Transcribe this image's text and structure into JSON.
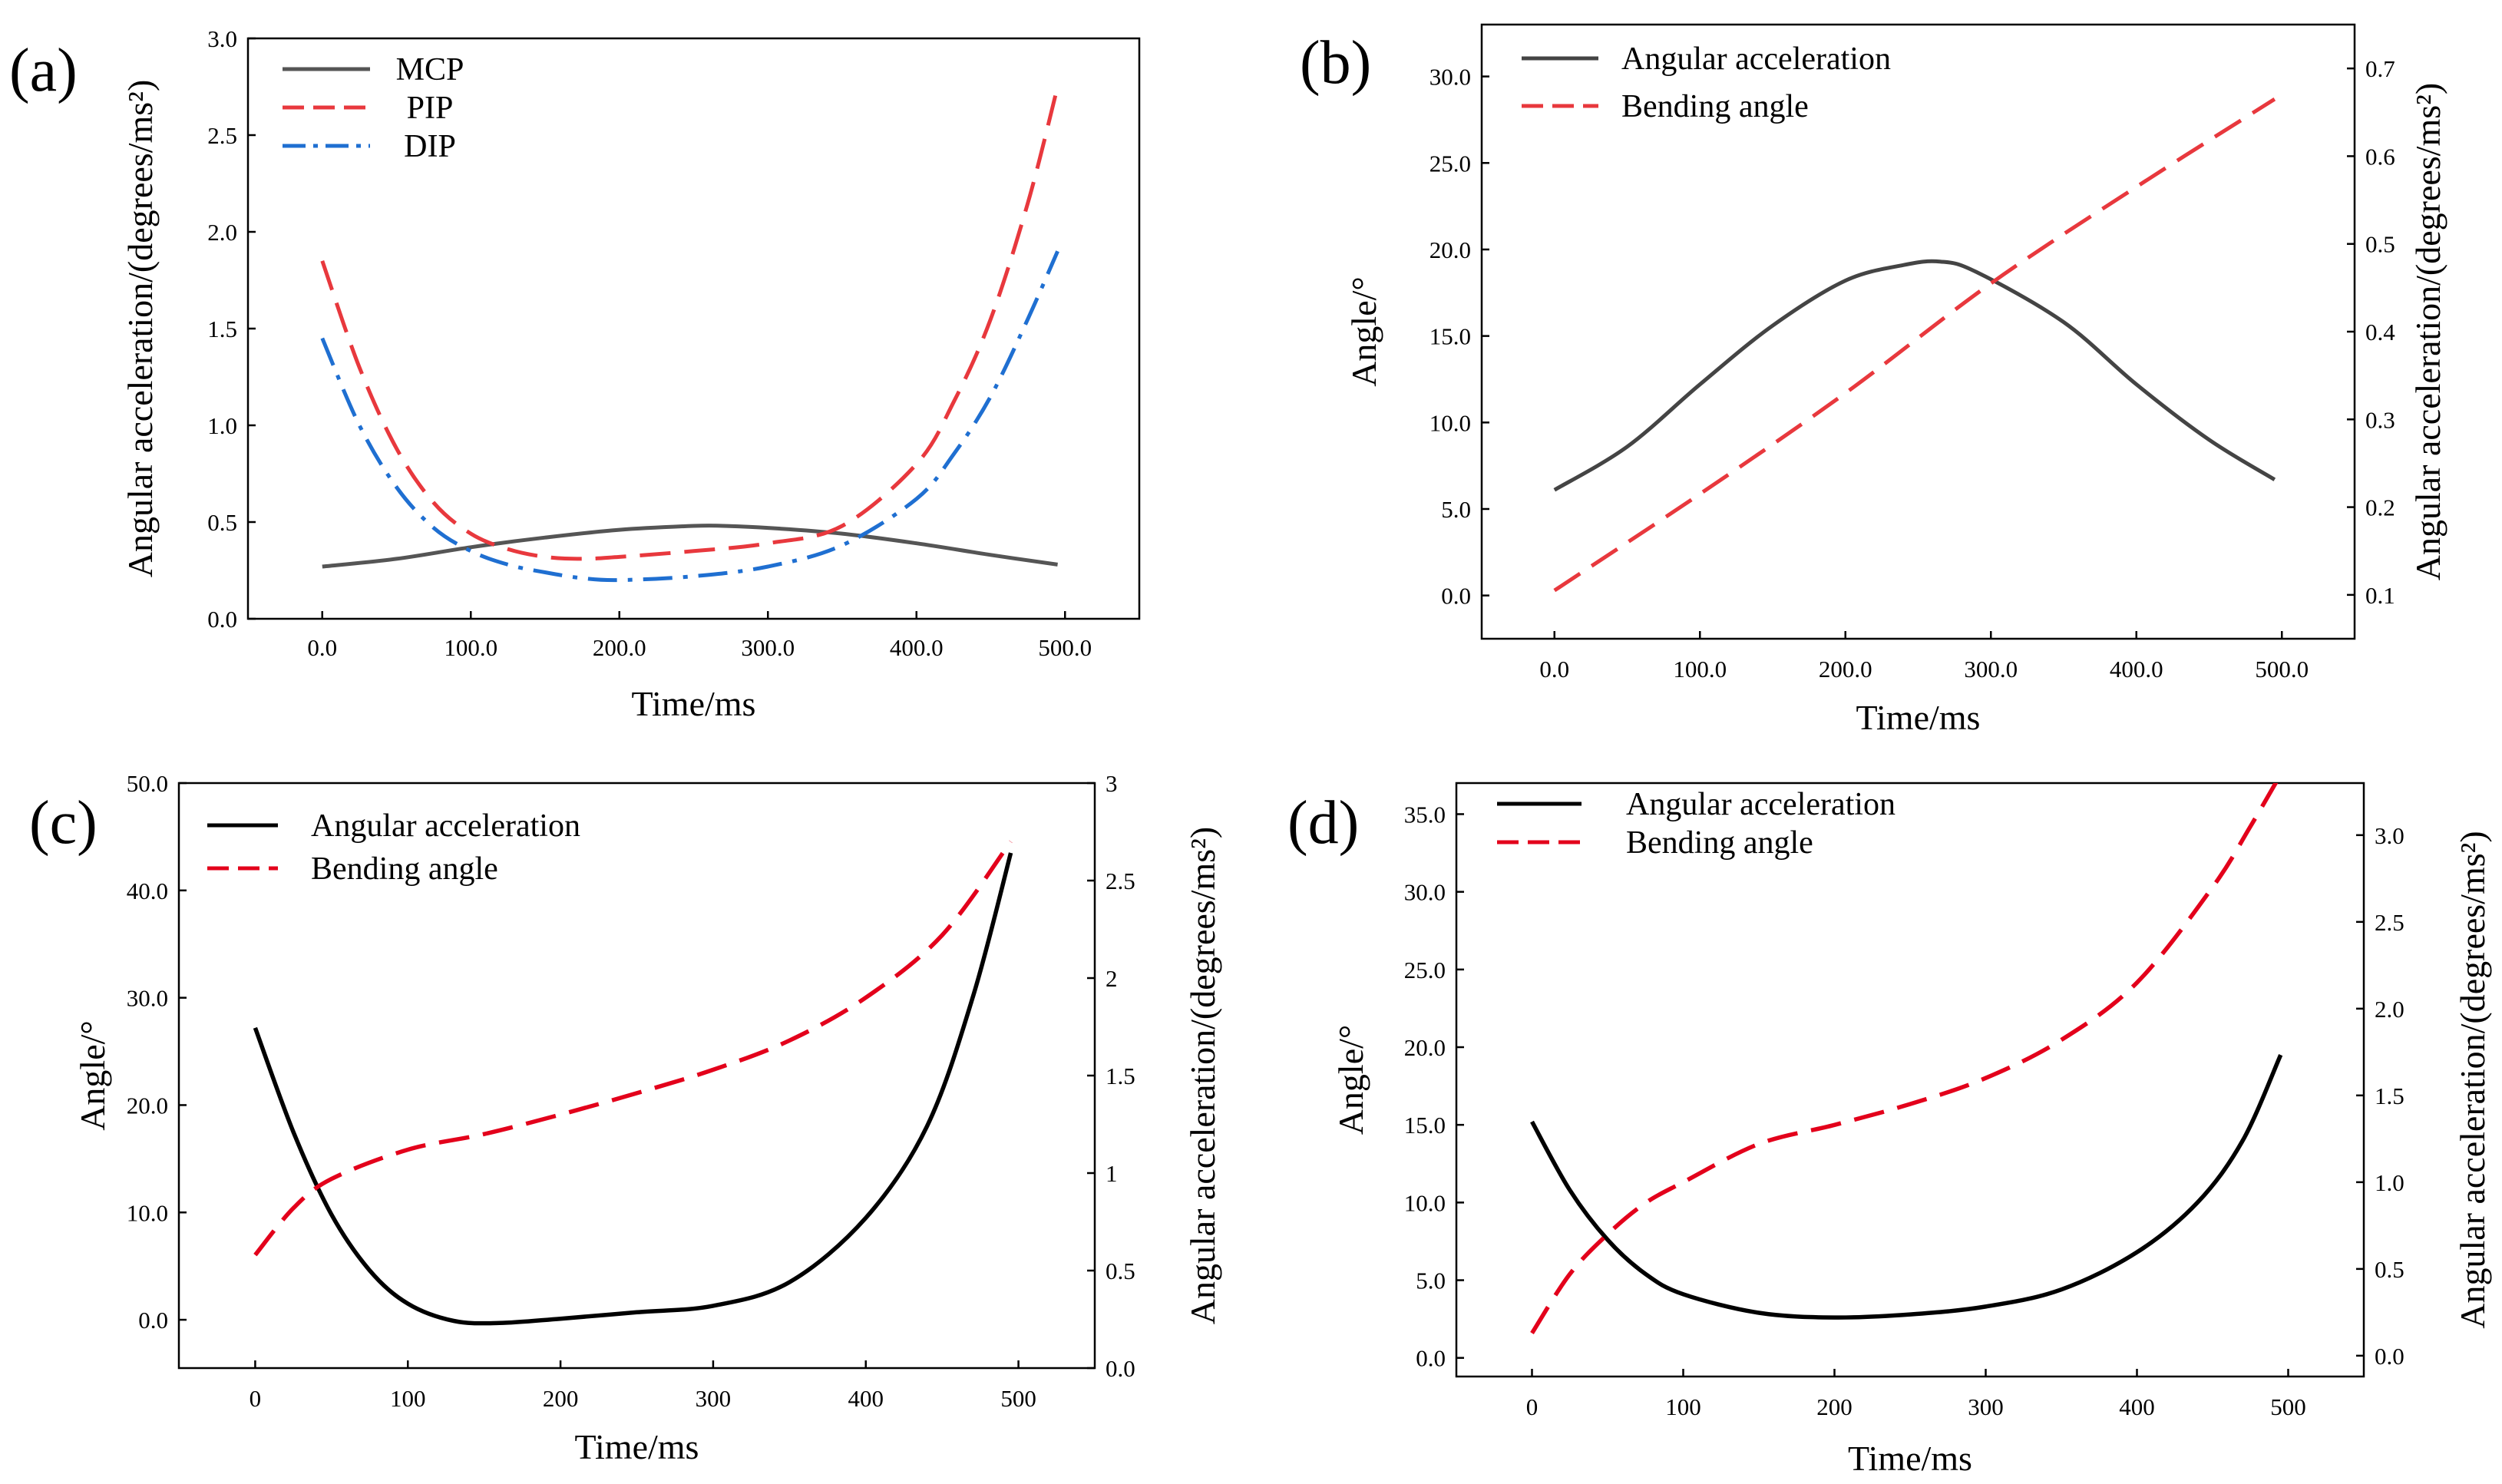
{
  "chart_data": [
    {
      "panel": "(a)",
      "type": "line",
      "xlabel": "Time/ms",
      "ylabel": "Angular acceleration/(degrees/ms²)",
      "xlim": [
        -50,
        550
      ],
      "ylim": [
        0,
        3.0
      ],
      "xticks": [
        0,
        100,
        200,
        300,
        400,
        500
      ],
      "xtick_labels": [
        "0.0",
        "100.0",
        "200.0",
        "300.0",
        "400.0",
        "500.0"
      ],
      "yticks": [
        0,
        0.5,
        1.0,
        1.5,
        2.0,
        2.5,
        3.0
      ],
      "ytick_labels": [
        "0.0",
        "0.5",
        "1.0",
        "1.5",
        "2.0",
        "2.5",
        "3.0"
      ],
      "legend": "top-left",
      "series": [
        {
          "name": "MCP",
          "axis": "left",
          "color": "#555555",
          "style": "solid",
          "x": [
            0,
            50,
            100,
            150,
            200,
            250,
            270,
            300,
            350,
            400,
            450,
            495
          ],
          "y": [
            0.27,
            0.31,
            0.37,
            0.42,
            0.46,
            0.48,
            0.48,
            0.47,
            0.44,
            0.39,
            0.33,
            0.28
          ]
        },
        {
          "name": "PIP",
          "axis": "left",
          "color": "#e8383d",
          "style": "dash",
          "x": [
            0,
            25,
            50,
            75,
            100,
            125,
            150,
            175,
            200,
            250,
            300,
            350,
            400,
            425,
            450,
            475,
            495
          ],
          "y": [
            1.85,
            1.3,
            0.88,
            0.6,
            0.44,
            0.36,
            0.32,
            0.31,
            0.32,
            0.35,
            0.39,
            0.48,
            0.8,
            1.12,
            1.55,
            2.15,
            2.75
          ]
        },
        {
          "name": "DIP",
          "axis": "left",
          "color": "#1f6fd1",
          "style": "dashdot",
          "x": [
            0,
            25,
            50,
            75,
            100,
            125,
            150,
            175,
            200,
            250,
            300,
            350,
            400,
            425,
            450,
            475,
            495
          ],
          "y": [
            1.45,
            1.0,
            0.68,
            0.47,
            0.35,
            0.28,
            0.24,
            0.21,
            0.2,
            0.22,
            0.27,
            0.38,
            0.62,
            0.85,
            1.15,
            1.55,
            1.9
          ]
        }
      ]
    },
    {
      "panel": "(b)",
      "type": "line",
      "xlabel": "Time/ms",
      "ylabel": "Angle/°",
      "ylabel_right": "Angular acceleration/(degrees/ms²)",
      "xlim": [
        -50,
        550
      ],
      "ylim": [
        -2.5,
        33
      ],
      "ylim_right": [
        0.05,
        0.75
      ],
      "xticks": [
        0,
        100,
        200,
        300,
        400,
        500
      ],
      "xtick_labels": [
        "0.0",
        "100.0",
        "200.0",
        "300.0",
        "400.0",
        "500.0"
      ],
      "yticks": [
        0,
        5,
        10,
        15,
        20,
        25,
        30
      ],
      "ytick_labels": [
        "0.0",
        "5.0",
        "10.0",
        "15.0",
        "20.0",
        "25.0",
        "30.0"
      ],
      "yticks_right": [
        0.1,
        0.2,
        0.3,
        0.4,
        0.5,
        0.6,
        0.7
      ],
      "ytick_labels_right": [
        "0.1",
        "0.2",
        "0.3",
        "0.4",
        "0.5",
        "0.6",
        "0.7"
      ],
      "legend": "top-left",
      "series": [
        {
          "name": "Angular acceleration",
          "axis": "left",
          "color": "#444444",
          "style": "solid",
          "x": [
            0,
            50,
            100,
            150,
            200,
            240,
            265,
            290,
            350,
            400,
            450,
            495
          ],
          "y": [
            6.1,
            8.6,
            12.2,
            15.6,
            18.2,
            19.1,
            19.3,
            18.7,
            15.8,
            12.2,
            9.0,
            6.7
          ]
        },
        {
          "name": "Bending angle",
          "axis": "right",
          "color": "#e8383d",
          "style": "dash",
          "x": [
            0,
            100,
            200,
            300,
            400,
            495
          ],
          "y": [
            0.105,
            0.215,
            0.33,
            0.455,
            0.565,
            0.665
          ]
        }
      ]
    },
    {
      "panel": "(c)",
      "type": "line",
      "xlabel": "Time/ms",
      "ylabel": "Angle/°",
      "ylabel_right": "Angular acceleration/(degrees/ms²)",
      "xlim": [
        -50,
        550
      ],
      "ylim": [
        -4.5,
        50
      ],
      "ylim_right": [
        0.0,
        3.0
      ],
      "xticks": [
        0,
        100,
        200,
        300,
        400,
        500
      ],
      "xtick_labels": [
        "0",
        "100",
        "200",
        "300",
        "400",
        "500"
      ],
      "yticks": [
        0,
        10,
        20,
        30,
        40,
        50
      ],
      "ytick_labels": [
        "0.0",
        "10.0",
        "20.0",
        "30.0",
        "40.0",
        "50.0"
      ],
      "yticks_right": [
        0.0,
        0.5,
        1.0,
        1.5,
        2.0,
        2.5,
        3.0
      ],
      "ytick_labels_right": [
        "0.0",
        "0.5",
        "1",
        "1.5",
        "2",
        "2.5",
        "3"
      ],
      "legend": "top-left",
      "series": [
        {
          "name": "Angular acceleration",
          "axis": "left",
          "color": "#000000",
          "style": "solid",
          "x": [
            0,
            25,
            50,
            75,
            100,
            130,
            160,
            200,
            250,
            300,
            350,
            400,
            440,
            470,
            495
          ],
          "y": [
            27.2,
            17.5,
            9.8,
            4.6,
            1.5,
            -0.1,
            -0.3,
            0.1,
            0.7,
            1.3,
            3.5,
            9.5,
            18.0,
            30.0,
            43.5
          ]
        },
        {
          "name": "Bending angle",
          "axis": "right",
          "color": "#e3001b",
          "style": "dash",
          "x": [
            0,
            25,
            50,
            100,
            150,
            200,
            250,
            300,
            350,
            400,
            450,
            495
          ],
          "y": [
            0.58,
            0.82,
            0.97,
            1.12,
            1.2,
            1.3,
            1.41,
            1.53,
            1.68,
            1.9,
            2.22,
            2.7
          ]
        }
      ]
    },
    {
      "panel": "(d)",
      "type": "line",
      "xlabel": "Time/ms",
      "ylabel": "Angle/°",
      "ylabel_right": "Angular acceleration/(degrees/ms²)",
      "xlim": [
        -50,
        550
      ],
      "ylim": [
        -1.2,
        37
      ],
      "ylim_right": [
        -0.12,
        3.3
      ],
      "xticks": [
        0,
        100,
        200,
        300,
        400,
        500
      ],
      "xtick_labels": [
        "0",
        "100",
        "200",
        "300",
        "400",
        "500"
      ],
      "yticks": [
        0,
        5,
        10,
        15,
        20,
        25,
        30,
        35
      ],
      "ytick_labels": [
        "0.0",
        "5.0",
        "10.0",
        "15.0",
        "20.0",
        "25.0",
        "30.0",
        "35.0"
      ],
      "yticks_right": [
        0,
        0.5,
        1.0,
        1.5,
        2.0,
        2.5,
        3.0
      ],
      "ytick_labels_right": [
        "0.0",
        "0.5",
        "1.0",
        "1.5",
        "2.0",
        "2.5",
        "3.0"
      ],
      "legend": "top-left",
      "series": [
        {
          "name": "Angular acceleration",
          "axis": "left",
          "color": "#000000",
          "style": "solid",
          "x": [
            0,
            25,
            50,
            75,
            100,
            150,
            200,
            250,
            300,
            350,
            400,
            440,
            470,
            495
          ],
          "y": [
            15.2,
            10.8,
            7.6,
            5.4,
            4.1,
            2.9,
            2.6,
            2.8,
            3.3,
            4.4,
            6.8,
            10.0,
            14.0,
            19.5
          ]
        },
        {
          "name": "Bending angle",
          "axis": "right",
          "color": "#e3001b",
          "style": "dash",
          "x": [
            0,
            25,
            50,
            75,
            100,
            150,
            200,
            250,
            300,
            350,
            400,
            450,
            475,
            495
          ],
          "y": [
            0.13,
            0.47,
            0.7,
            0.88,
            1.0,
            1.22,
            1.33,
            1.45,
            1.6,
            1.82,
            2.15,
            2.7,
            3.05,
            3.35
          ]
        }
      ]
    }
  ]
}
